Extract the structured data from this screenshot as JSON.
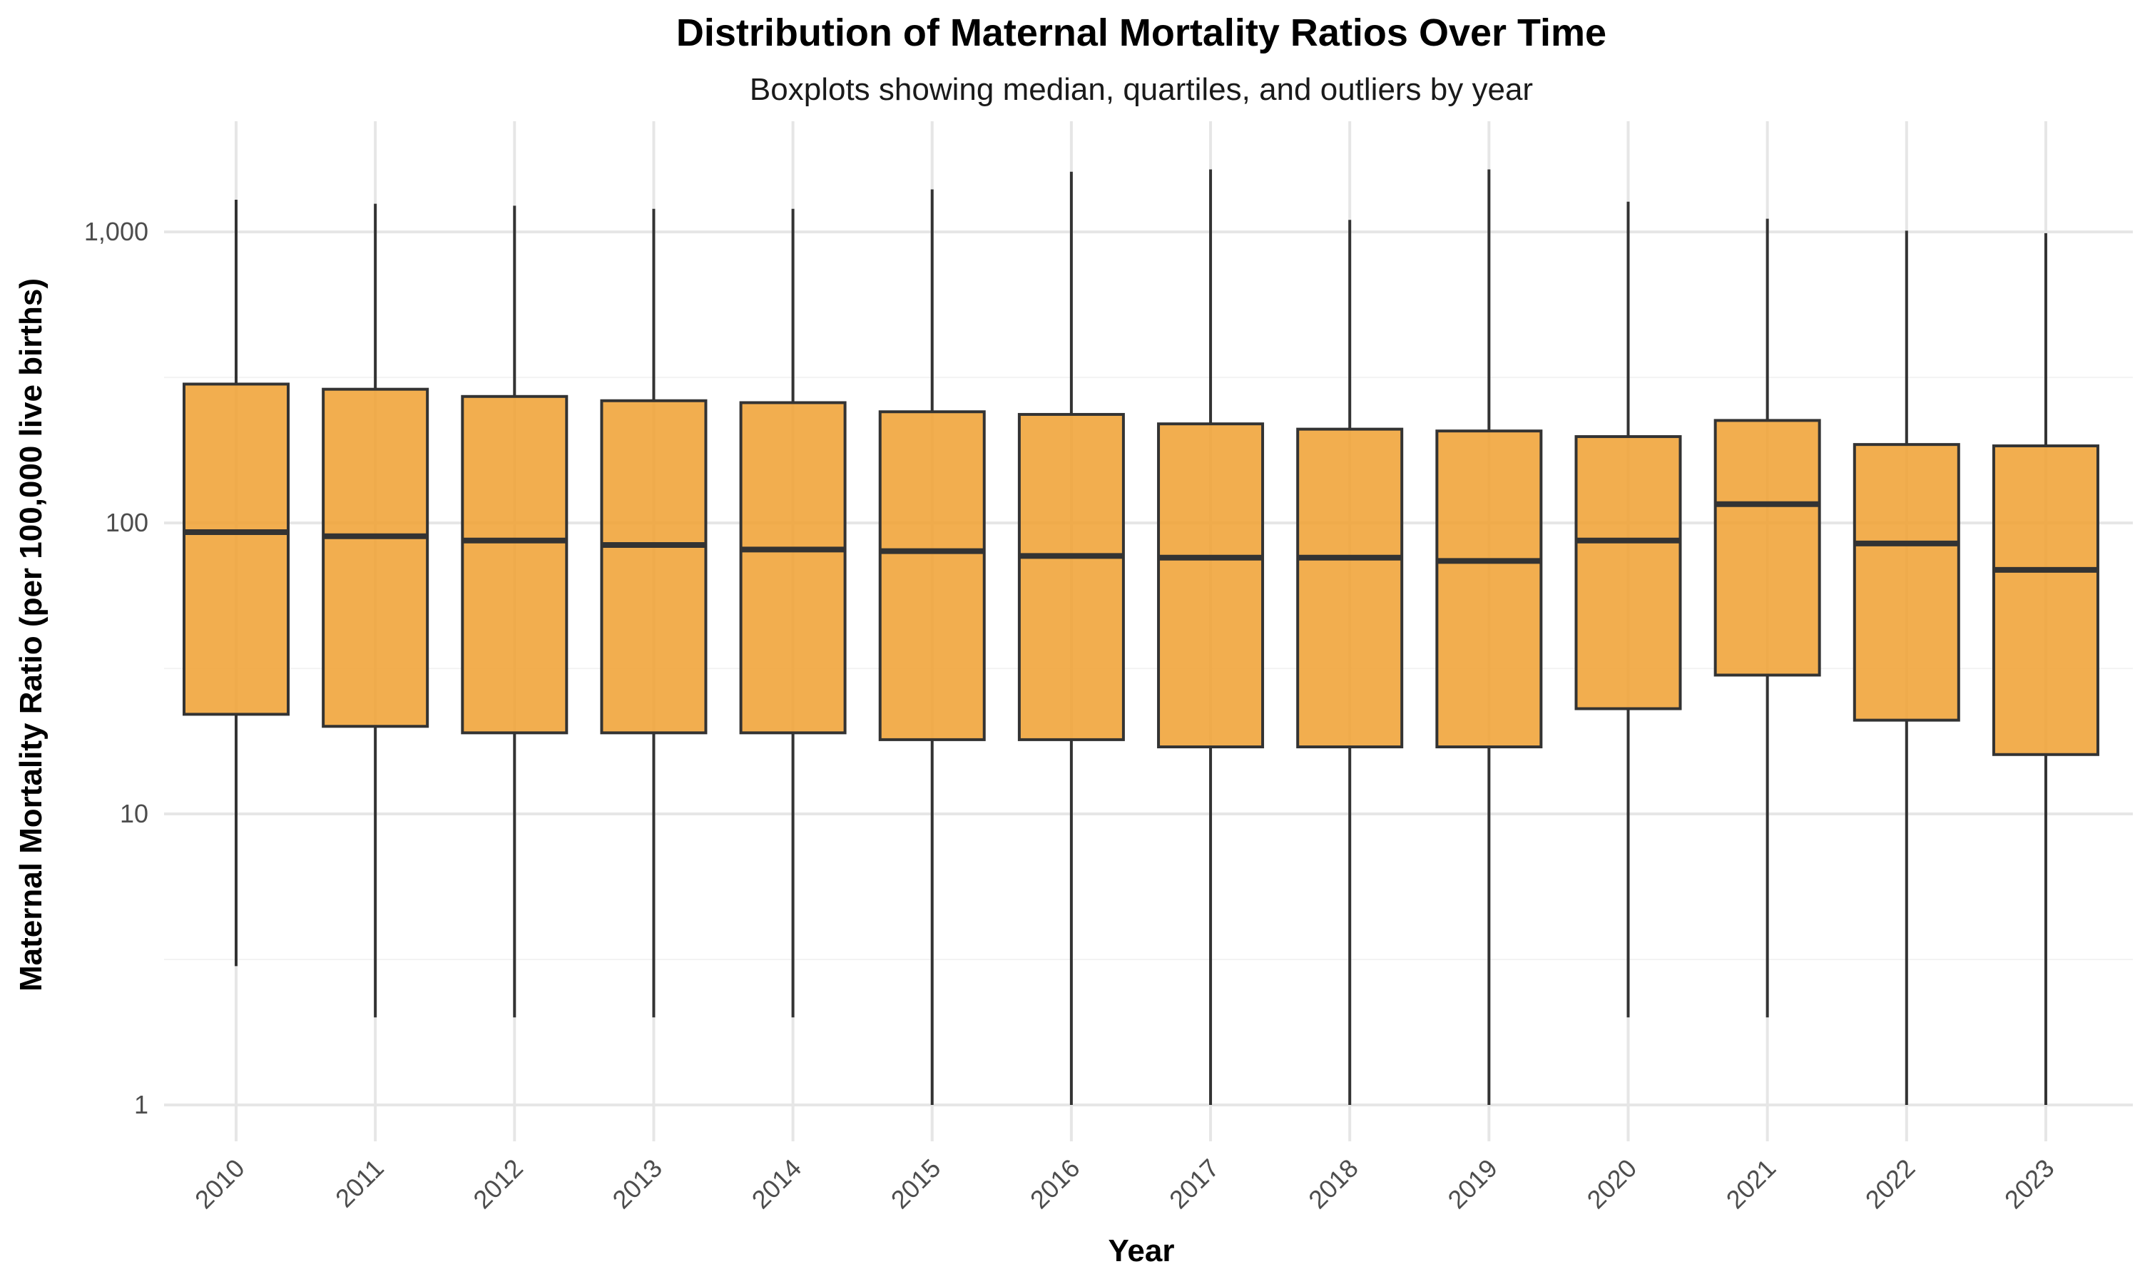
{
  "chart_data": {
    "type": "boxplot",
    "title": "Distribution of Maternal Mortality Ratios Over Time",
    "subtitle": "Boxplots showing median, quartiles, and outliers by year",
    "xlabel": "Year",
    "ylabel": "Maternal Mortality Ratio (per 100,000 live births)",
    "y_scale": "log10",
    "ylim": [
      0.75,
      2400
    ],
    "y_ticks": [
      1,
      10,
      100,
      1000
    ],
    "y_tick_labels": [
      "1",
      "10",
      "100",
      "1,000"
    ],
    "grid": true,
    "legend": "none",
    "box_color": "#F0A030",
    "line_color": "#333333",
    "categories": [
      "2010",
      "2011",
      "2012",
      "2013",
      "2014",
      "2015",
      "2016",
      "2017",
      "2018",
      "2019",
      "2020",
      "2021",
      "2022",
      "2023"
    ],
    "boxes": [
      {
        "year": "2010",
        "min": 3,
        "q1": 22,
        "median": 93,
        "q3": 300,
        "max": 1290
      },
      {
        "year": "2011",
        "min": 2,
        "q1": 20,
        "median": 90,
        "q3": 288,
        "max": 1250
      },
      {
        "year": "2012",
        "min": 2,
        "q1": 19,
        "median": 87,
        "q3": 272,
        "max": 1230
      },
      {
        "year": "2013",
        "min": 2,
        "q1": 19,
        "median": 84,
        "q3": 263,
        "max": 1200
      },
      {
        "year": "2014",
        "min": 2,
        "q1": 19,
        "median": 81,
        "q3": 259,
        "max": 1200
      },
      {
        "year": "2015",
        "min": 1,
        "q1": 18,
        "median": 80,
        "q3": 241,
        "max": 1400
      },
      {
        "year": "2016",
        "min": 1,
        "q1": 18,
        "median": 77,
        "q3": 236,
        "max": 1610
      },
      {
        "year": "2017",
        "min": 1,
        "q1": 17,
        "median": 76,
        "q3": 219,
        "max": 1640
      },
      {
        "year": "2018",
        "min": 1,
        "q1": 17,
        "median": 76,
        "q3": 210,
        "max": 1100
      },
      {
        "year": "2019",
        "min": 1,
        "q1": 17,
        "median": 74,
        "q3": 207,
        "max": 1640
      },
      {
        "year": "2020",
        "min": 2,
        "q1": 23,
        "median": 87,
        "q3": 198,
        "max": 1270
      },
      {
        "year": "2021",
        "min": 2,
        "q1": 30,
        "median": 116,
        "q3": 225,
        "max": 1110
      },
      {
        "year": "2022",
        "min": 1,
        "q1": 21,
        "median": 85,
        "q3": 186,
        "max": 1010
      },
      {
        "year": "2023",
        "min": 1,
        "q1": 16,
        "median": 69,
        "q3": 184,
        "max": 990
      }
    ]
  }
}
